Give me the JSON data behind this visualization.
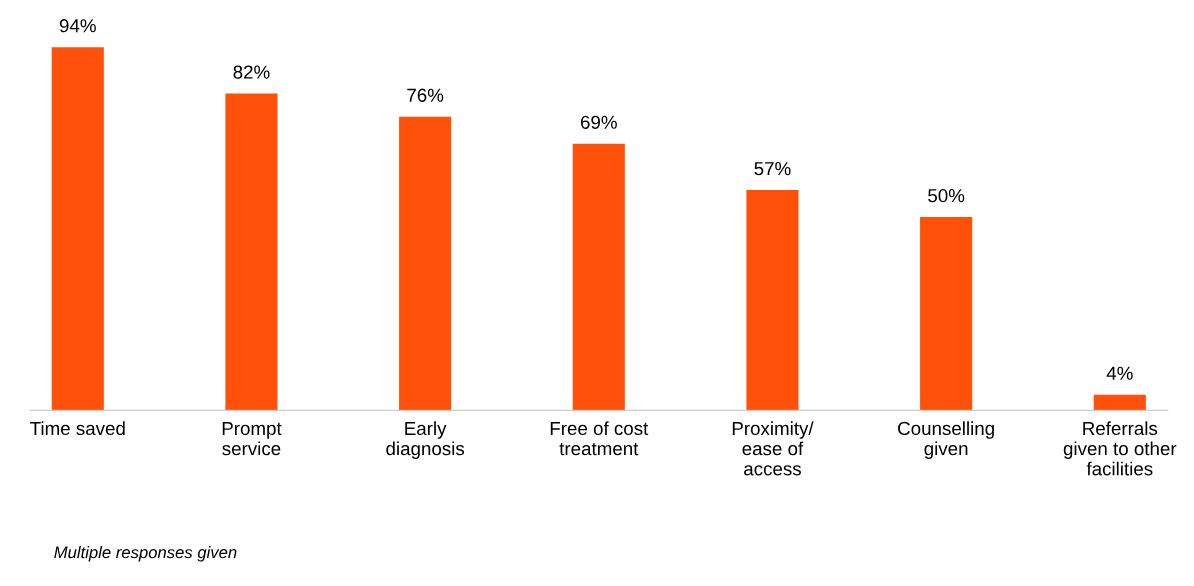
{
  "chart_data": {
    "type": "bar",
    "categories": [
      "Time saved",
      "Prompt\nservice",
      "Early\ndiagnosis",
      "Free of cost\ntreatment",
      "Proximity/\nease of\naccess",
      "Counselling\ngiven",
      "Referrals\ngiven to other\nfacilities"
    ],
    "values": [
      94,
      82,
      76,
      69,
      57,
      50,
      4
    ],
    "value_labels": [
      "94%",
      "82%",
      "76%",
      "69%",
      "57%",
      "50%",
      "4%"
    ],
    "color": "#ff5109",
    "annotations": [
      "Multiple responses given"
    ],
    "grid": false,
    "legend": false
  }
}
